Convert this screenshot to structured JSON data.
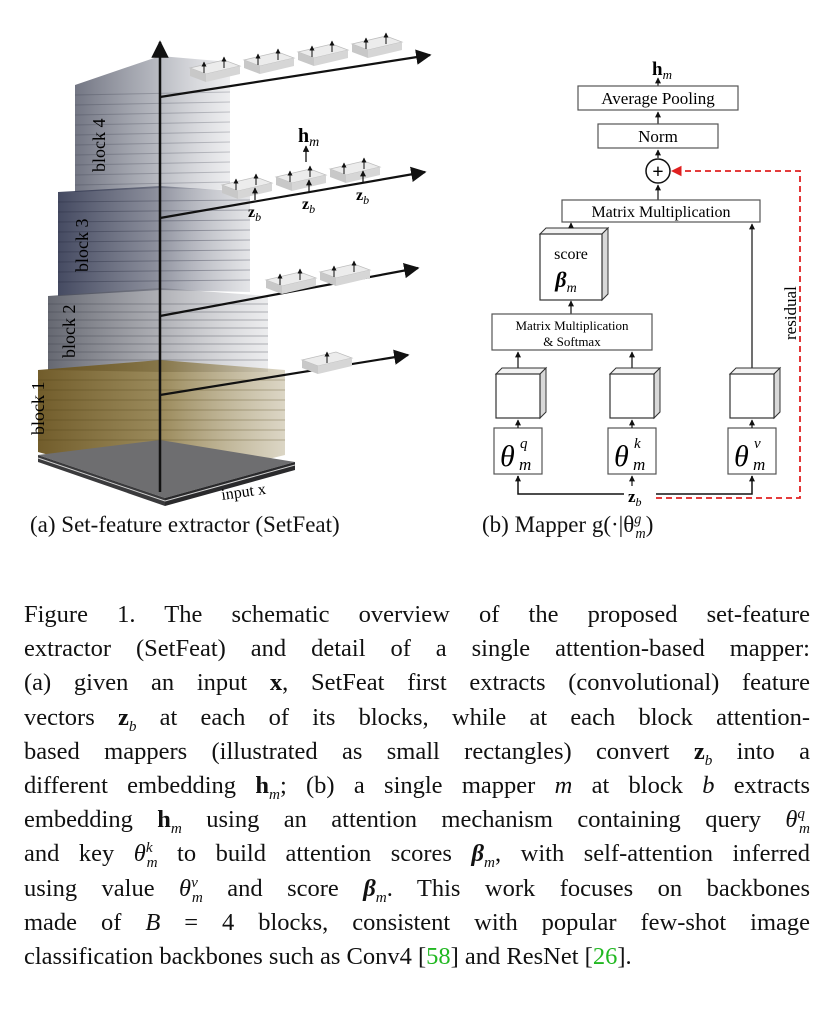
{
  "figure": {
    "panel_a": {
      "subcaption": "(a) Set-feature extractor (SetFeat)",
      "block_labels": [
        "block 1",
        "block 2",
        "block 3",
        "block 4"
      ],
      "input_label": "input x",
      "h_label": "h",
      "h_sub": "m",
      "z_label": "z",
      "z_sub": "b"
    },
    "panel_b": {
      "subcaption": "(b) Mapper g(·|θ",
      "subcaption_sup": "g",
      "subcaption_sub": "m",
      "subcaption_end": ")",
      "output_label": "h",
      "output_sub": "m",
      "avg_pool": "Average Pooling",
      "norm": "Norm",
      "plus": "+",
      "matmul_top": "Matrix Multiplication",
      "score_word": "score",
      "score_symbol": "β",
      "score_sub": "m",
      "matmul_softmax_1": "Matrix Multiplication",
      "matmul_softmax_2": "& Softmax",
      "residual": "residual",
      "theta": "θ",
      "theta_q": "q",
      "theta_k": "k",
      "theta_v": "v",
      "theta_sub": "m",
      "input_z": "z",
      "input_z_sub": "b"
    }
  },
  "caption": {
    "l1_a": "Figure 1.  The schematic overview of the proposed set-feature",
    "l2_a": "extractor (SetFeat) and detail of a single attention-based mapper:",
    "l3_a": "(a) given an input ",
    "l3_x": "x",
    "l3_b": ", SetFeat first extracts (convolutional) feature",
    "l4_a": "vectors ",
    "l4_z": "z",
    "l4_zs": "b",
    "l4_b": " at each of its blocks, while at each block attention-",
    "l5_a": "based mappers (illustrated as small rectangles) convert ",
    "l5_z": "z",
    "l5_zs": "b",
    "l5_b": " into a",
    "l6_a": "different embedding ",
    "l6_h": "h",
    "l6_hs": "m",
    "l6_b": "; (b) a single mapper ",
    "l6_m": "m",
    "l6_c": " at block ",
    "l6_bb": "b",
    "l6_d": " extracts",
    "l7_a": "embedding ",
    "l7_h": "h",
    "l7_hs": "m",
    "l7_b": " using an attention mechanism containing query ",
    "l7_t": "θ",
    "l7_tsup": "q",
    "l7_tsub": "m",
    "l8_a": "and key ",
    "l8_t": "θ",
    "l8_tsup": "k",
    "l8_tsub": "m",
    "l8_b": " to build attention scores ",
    "l8_beta": "β",
    "l8_bs": "m",
    "l8_c": ", with self-attention inferred",
    "l9_a": "using value ",
    "l9_t": "θ",
    "l9_tsup": "v",
    "l9_tsub": "m",
    "l9_b": " and score ",
    "l9_beta": "β",
    "l9_bs": "m",
    "l9_c": ". This work focuses on backbones",
    "l10_a": "made of ",
    "l10_B": "B",
    "l10_b": " = 4 blocks, consistent with popular few-shot image",
    "l11_a": "classification backbones such as Conv4 [",
    "l11_r1": "58",
    "l11_b": "] and ResNet [",
    "l11_r2": "26",
    "l11_c": "]."
  },
  "colors": {
    "reference": "#22b822",
    "residual": "#e02020",
    "block1": "#7a6320",
    "blocks_upper": "#3a3f52"
  }
}
